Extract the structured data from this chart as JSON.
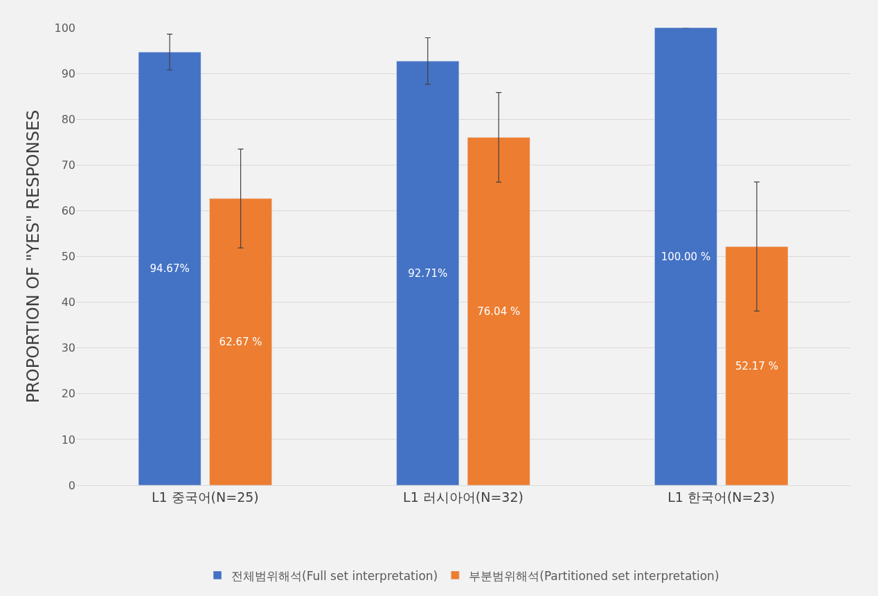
{
  "chart_data": {
    "type": "bar",
    "ylabel": "PROPORTION OF \"YES\" RESPONSES",
    "categories": [
      "L1 중국어(N=25)",
      "L1 러시아어(N=32)",
      "L1 한국어(N=23)"
    ],
    "series": [
      {
        "name": "전체범위해석(Full set interpretation)",
        "color": "#4472c4",
        "values": [
          94.67,
          92.71,
          100
        ],
        "errors": [
          3.9,
          5.1,
          0
        ],
        "value_labels": [
          "94.67%",
          "92.71%",
          "100.00 %"
        ]
      },
      {
        "name": "부분범위해석(Partitioned set interpretation)",
        "color": "#ed7d31",
        "values": [
          62.67,
          76.04,
          52.17
        ],
        "errors": [
          10.8,
          9.8,
          14.1
        ],
        "value_labels": [
          "62.67 %",
          "76.04 %",
          "52.17 %"
        ]
      }
    ],
    "ylim": [
      0,
      100
    ],
    "yticks": [
      0,
      10,
      20,
      30,
      40,
      50,
      60,
      70,
      80,
      90,
      100
    ],
    "grid": "y",
    "legend": "bottom"
  }
}
